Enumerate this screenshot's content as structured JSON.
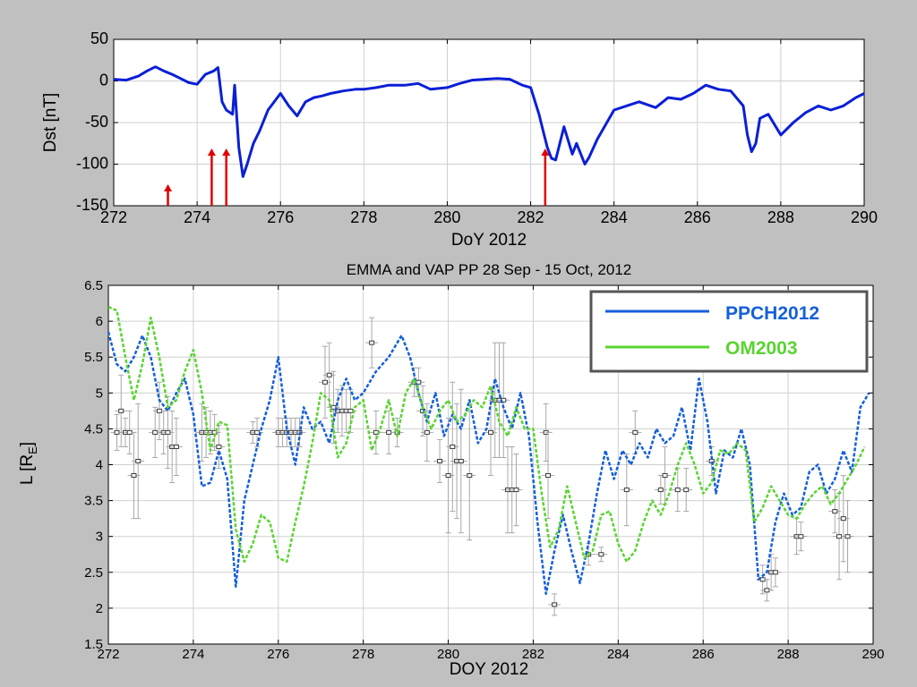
{
  "chart_data": [
    {
      "type": "line",
      "xlabel": "DoY 2012",
      "ylabel": "Dst [nT]",
      "xlim": [
        272,
        290
      ],
      "ylim": [
        -150,
        50
      ],
      "xticks": [
        272,
        274,
        276,
        278,
        280,
        282,
        284,
        286,
        288,
        290
      ],
      "yticks": [
        50,
        0,
        -50,
        -100,
        -150
      ],
      "grid": true,
      "series": [
        {
          "color": "#0a1fd6",
          "x": [
            272.0,
            272.3,
            272.6,
            272.8,
            273.0,
            273.2,
            273.4,
            273.6,
            273.8,
            274.0,
            274.2,
            274.4,
            274.5,
            274.6,
            274.7,
            274.85,
            274.9,
            275.0,
            275.1,
            275.2,
            275.35,
            275.5,
            275.7,
            276.0,
            276.2,
            276.4,
            276.6,
            276.8,
            277.0,
            277.2,
            277.5,
            277.8,
            278.0,
            278.3,
            278.6,
            279.0,
            279.3,
            279.6,
            280.0,
            280.3,
            280.6,
            280.9,
            281.2,
            281.5,
            281.8,
            282.0,
            282.2,
            282.3,
            282.4,
            282.5,
            282.6,
            282.8,
            283.0,
            283.1,
            283.3,
            283.4,
            283.6,
            284.0,
            284.3,
            284.6,
            285.0,
            285.3,
            285.6,
            285.9,
            286.2,
            286.5,
            286.8,
            287.1,
            287.2,
            287.3,
            287.4,
            287.5,
            287.7,
            288.0,
            288.3,
            288.6,
            288.9,
            289.2,
            289.5,
            289.8,
            290.0
          ],
          "y": [
            2,
            1,
            6,
            12,
            17,
            12,
            8,
            3,
            -2,
            -4,
            8,
            12,
            16,
            -25,
            -35,
            -40,
            -5,
            -80,
            -115,
            -100,
            -75,
            -60,
            -35,
            -15,
            -30,
            -42,
            -25,
            -20,
            -18,
            -15,
            -12,
            -10,
            -10,
            -8,
            -5,
            -5,
            -3,
            -10,
            -8,
            -3,
            1,
            2,
            3,
            2,
            -5,
            -8,
            -40,
            -60,
            -80,
            -93,
            -95,
            -55,
            -88,
            -75,
            -100,
            -92,
            -70,
            -35,
            -30,
            -25,
            -32,
            -20,
            -22,
            -15,
            -5,
            -10,
            -12,
            -30,
            -65,
            -85,
            -75,
            -45,
            -40,
            -65,
            -50,
            -38,
            -30,
            -35,
            -30,
            -20,
            -15
          ]
        }
      ],
      "arrows_x": [
        273.3,
        274.35,
        274.7,
        282.35
      ],
      "arrow_color": "#e00000"
    },
    {
      "type": "line",
      "title": "EMMA and VAP PP 28 Sep - 15 Oct, 2012",
      "xlabel": "DOY 2012",
      "ylabel": "L [R",
      "ylabel_sub": "E",
      "ylabel_end": "]",
      "xlim": [
        272,
        290
      ],
      "ylim": [
        1.5,
        6.5
      ],
      "xticks": [
        272,
        274,
        276,
        278,
        280,
        282,
        284,
        286,
        288,
        290
      ],
      "yticks": [
        6.5,
        6,
        5.5,
        5,
        4.5,
        4,
        3.5,
        3,
        2.5,
        2,
        1.5
      ],
      "grid": true,
      "legend_position": "top-right",
      "series": [
        {
          "name": "PPCH2012",
          "color": "#1560d8",
          "x": [
            272.0,
            272.2,
            272.4,
            272.6,
            272.8,
            273.0,
            273.2,
            273.4,
            273.6,
            273.8,
            274.0,
            274.2,
            274.4,
            274.6,
            274.8,
            275.0,
            275.2,
            275.4,
            275.6,
            275.8,
            276.0,
            276.2,
            276.4,
            276.6,
            276.8,
            277.0,
            277.2,
            277.4,
            277.6,
            277.8,
            278.0,
            278.3,
            278.6,
            278.9,
            279.1,
            279.3,
            279.5,
            279.7,
            279.9,
            280.1,
            280.3,
            280.5,
            280.7,
            280.9,
            281.1,
            281.3,
            281.5,
            281.7,
            281.9,
            282.1,
            282.3,
            282.5,
            282.7,
            282.9,
            283.1,
            283.3,
            283.5,
            283.7,
            283.9,
            284.1,
            284.3,
            284.5,
            284.7,
            284.9,
            285.1,
            285.3,
            285.5,
            285.7,
            285.9,
            286.1,
            286.3,
            286.5,
            286.7,
            286.9,
            287.1,
            287.3,
            287.5,
            287.7,
            287.9,
            288.1,
            288.3,
            288.5,
            288.7,
            288.9,
            289.1,
            289.3,
            289.5,
            289.7,
            289.9
          ],
          "y": [
            5.85,
            5.4,
            5.3,
            5.5,
            5.8,
            5.5,
            4.9,
            4.75,
            5.0,
            5.2,
            4.7,
            3.7,
            3.75,
            4.2,
            3.8,
            2.3,
            3.5,
            4.0,
            4.5,
            4.9,
            5.5,
            4.5,
            4.0,
            4.8,
            4.5,
            4.6,
            4.3,
            4.9,
            5.2,
            4.9,
            5.0,
            5.3,
            5.5,
            5.8,
            5.5,
            5.0,
            4.6,
            5.0,
            4.4,
            4.7,
            4.5,
            4.9,
            4.3,
            4.5,
            5.2,
            4.8,
            4.5,
            5.0,
            4.4,
            3.2,
            2.2,
            2.8,
            3.3,
            2.8,
            2.35,
            2.9,
            3.6,
            4.2,
            3.8,
            4.2,
            4.0,
            4.3,
            4.1,
            4.5,
            4.3,
            4.4,
            4.8,
            4.2,
            5.2,
            4.6,
            3.6,
            4.2,
            4.1,
            4.5,
            4.0,
            2.4,
            2.5,
            3.2,
            3.6,
            3.3,
            3.4,
            3.9,
            4.0,
            3.6,
            3.8,
            4.2,
            3.9,
            4.8,
            5.0
          ]
        },
        {
          "name": "OM2003",
          "color": "#5ad432",
          "x": [
            272.0,
            272.2,
            272.4,
            272.6,
            272.8,
            273.0,
            273.2,
            273.4,
            273.6,
            273.8,
            274.0,
            274.2,
            274.4,
            274.6,
            274.8,
            275.0,
            275.2,
            275.4,
            275.6,
            275.8,
            276.0,
            276.2,
            276.4,
            276.6,
            276.8,
            277.0,
            277.2,
            277.4,
            277.6,
            277.8,
            278.0,
            278.2,
            278.4,
            278.6,
            278.8,
            279.0,
            279.2,
            279.4,
            279.6,
            279.8,
            280.0,
            280.2,
            280.4,
            280.6,
            280.8,
            281.0,
            281.2,
            281.4,
            281.6,
            281.8,
            282.0,
            282.2,
            282.4,
            282.6,
            282.8,
            283.0,
            283.2,
            283.4,
            283.6,
            283.8,
            284.0,
            284.2,
            284.4,
            284.6,
            284.8,
            285.0,
            285.2,
            285.4,
            285.6,
            285.8,
            286.0,
            286.2,
            286.4,
            286.6,
            286.8,
            287.0,
            287.2,
            287.4,
            287.6,
            287.8,
            288.0,
            288.2,
            288.4,
            288.6,
            288.8,
            289.0,
            289.2,
            289.4,
            289.6,
            289.8
          ],
          "y": [
            6.2,
            6.15,
            5.5,
            4.9,
            5.4,
            6.05,
            5.5,
            4.8,
            4.9,
            5.3,
            5.6,
            5.0,
            4.2,
            4.6,
            4.55,
            3.1,
            2.65,
            2.9,
            3.3,
            3.2,
            2.7,
            2.65,
            3.2,
            3.7,
            4.3,
            5.0,
            4.9,
            4.1,
            4.3,
            4.8,
            4.9,
            4.2,
            4.5,
            4.9,
            4.4,
            5.0,
            5.2,
            4.8,
            4.5,
            4.75,
            4.9,
            4.6,
            4.7,
            4.9,
            4.8,
            5.1,
            4.6,
            4.4,
            4.8,
            4.5,
            4.5,
            3.6,
            2.85,
            3.1,
            3.7,
            3.2,
            2.7,
            2.8,
            3.3,
            3.35,
            2.9,
            2.65,
            2.8,
            3.2,
            3.5,
            3.3,
            3.6,
            4.0,
            4.3,
            4.0,
            3.6,
            3.75,
            4.2,
            4.15,
            4.3,
            4.2,
            3.2,
            3.4,
            3.7,
            3.5,
            3.3,
            3.25,
            3.45,
            3.6,
            3.7,
            3.45,
            3.6,
            3.8,
            4.0,
            4.25
          ]
        }
      ],
      "points": {
        "x": [
          272.2,
          272.3,
          272.4,
          272.5,
          272.6,
          272.7,
          273.1,
          273.2,
          273.3,
          273.4,
          273.5,
          273.6,
          274.2,
          274.3,
          274.4,
          274.5,
          274.6,
          275.4,
          275.5,
          276.0,
          276.1,
          276.2,
          276.3,
          276.4,
          276.5,
          277.1,
          277.2,
          277.3,
          277.4,
          277.5,
          277.6,
          277.7,
          278.2,
          278.3,
          278.6,
          278.8,
          279.2,
          279.3,
          279.4,
          279.5,
          279.8,
          280.0,
          280.1,
          280.2,
          280.3,
          280.5,
          281.0,
          281.1,
          281.2,
          281.3,
          281.4,
          281.5,
          281.6,
          282.3,
          282.35,
          282.5,
          283.3,
          283.6,
          284.2,
          284.4,
          285.0,
          285.1,
          285.4,
          285.6,
          286.2,
          287.4,
          287.5,
          287.6,
          287.7,
          288.2,
          288.3,
          289.1,
          289.2,
          289.3,
          289.4
        ],
        "y": [
          4.45,
          4.75,
          4.45,
          4.45,
          3.85,
          4.05,
          4.45,
          4.75,
          4.45,
          4.45,
          4.25,
          4.25,
          4.45,
          4.45,
          4.45,
          4.45,
          4.25,
          4.45,
          4.45,
          4.45,
          4.45,
          4.45,
          4.45,
          4.45,
          4.45,
          5.15,
          5.25,
          4.8,
          4.75,
          4.75,
          4.75,
          4.75,
          5.7,
          4.45,
          4.45,
          4.45,
          5.15,
          5.15,
          4.75,
          4.45,
          4.05,
          3.85,
          4.25,
          4.05,
          4.05,
          3.85,
          4.45,
          4.9,
          4.9,
          4.9,
          3.65,
          3.65,
          3.65,
          4.45,
          3.85,
          2.05,
          2.75,
          2.75,
          3.65,
          4.45,
          3.65,
          3.85,
          3.65,
          3.65,
          4.05,
          2.4,
          2.25,
          2.5,
          2.5,
          3.0,
          3.0,
          3.35,
          3.0,
          3.25,
          3.0
        ],
        "err": [
          0.25,
          0.5,
          0.2,
          0.3,
          0.6,
          0.8,
          0.35,
          0.4,
          0.3,
          0.5,
          0.5,
          0.4,
          0.4,
          0.35,
          0.3,
          0.25,
          0.3,
          0.15,
          0.2,
          0.2,
          0.2,
          0.2,
          0.2,
          0.2,
          0.2,
          0.5,
          0.45,
          0.5,
          0.3,
          0.35,
          0.3,
          0.3,
          0.35,
          0.3,
          0.3,
          0.2,
          0.2,
          0.2,
          0.35,
          0.4,
          0.3,
          0.8,
          0.9,
          0.8,
          1.0,
          0.9,
          0.6,
          0.8,
          0.8,
          0.8,
          0.6,
          0.6,
          0.5,
          0.4,
          0.6,
          0.15,
          0.15,
          0.1,
          0.5,
          0.3,
          0.2,
          0.4,
          0.3,
          0.3,
          0.2,
          0.2,
          0.15,
          0.25,
          0.2,
          0.25,
          0.2,
          0.3,
          0.6,
          0.6,
          0.5
        ],
        "color": "#3a3a3a",
        "errcolor": "#a8a8a8"
      }
    }
  ]
}
